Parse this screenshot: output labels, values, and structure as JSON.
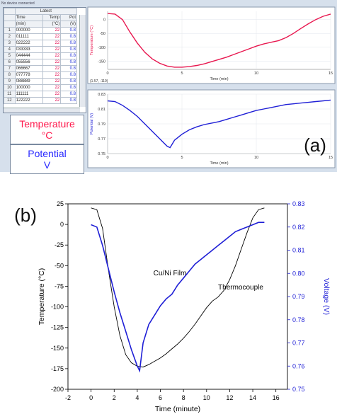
{
  "panel_a": {
    "label": "(a)",
    "status": "No device connected",
    "table": {
      "group_header": "Latest",
      "columns": [
        {
          "name": "Time",
          "unit": "(min)"
        },
        {
          "name": "Temp",
          "unit": "(°C)"
        },
        {
          "name": "Pot",
          "unit": "(V)"
        }
      ],
      "rows": [
        [
          "1",
          "000000",
          "22",
          "0.8"
        ],
        [
          "2",
          "011111",
          "22",
          "0.8"
        ],
        [
          "3",
          "022222",
          "22",
          "0.8"
        ],
        [
          "4",
          "033333",
          "22",
          "0.8"
        ],
        [
          "5",
          "044444",
          "22",
          "0.8"
        ],
        [
          "6",
          "055556",
          "22",
          "0.8"
        ],
        [
          "7",
          "066667",
          "22",
          "0.8"
        ],
        [
          "8",
          "077778",
          "22",
          "0.8"
        ],
        [
          "9",
          "088889",
          "22",
          "0.8"
        ],
        [
          "10",
          "100000",
          "22",
          "0.8"
        ],
        [
          "11",
          "111111",
          "22",
          "0.8"
        ],
        [
          "12",
          "122222",
          "22",
          "0.8"
        ]
      ]
    },
    "meters": {
      "temperature_label": "Temperature",
      "temperature_unit": "°C",
      "potential_label": "Potential",
      "potential_unit": "V"
    },
    "cursor_readout": "(1.57, -119)"
  },
  "chart_data": [
    {
      "type": "line",
      "panel": "a-top",
      "xlabel": "Time (min)",
      "ylabel": "Temperature (°C)",
      "xlim": [
        0,
        15
      ],
      "ylim": [
        -180,
        30
      ],
      "xticks": [
        0,
        5,
        10,
        15
      ],
      "yticks": [
        0,
        -50,
        -100,
        -150
      ],
      "ytick_labels": [
        "0",
        "-50",
        "-100",
        "-150"
      ],
      "color": "#e8174f",
      "series": [
        {
          "x": [
            0,
            0.5,
            1,
            1.5,
            2,
            2.5,
            3,
            3.5,
            4,
            4.5,
            5,
            5.5,
            6,
            6.5,
            7,
            7.5,
            8,
            8.5,
            9,
            9.5,
            10,
            10.5,
            11,
            11.5,
            12,
            12.5,
            13,
            13.5,
            14,
            14.5,
            15
          ],
          "y": [
            22,
            20,
            0,
            -45,
            -85,
            -118,
            -142,
            -158,
            -168,
            -172,
            -172,
            -170,
            -166,
            -160,
            -152,
            -144,
            -136,
            -126,
            -116,
            -106,
            -96,
            -88,
            -82,
            -76,
            -65,
            -50,
            -32,
            -15,
            0,
            12,
            20
          ]
        }
      ]
    },
    {
      "type": "line",
      "panel": "a-bottom",
      "xlabel": "Time (min)",
      "ylabel": "Potential (V)",
      "xlim": [
        0,
        15
      ],
      "ylim": [
        0.75,
        0.83
      ],
      "xticks": [
        0,
        5,
        10,
        15
      ],
      "yticks": [
        0.75,
        0.77,
        0.79,
        0.81,
        0.83
      ],
      "ytick_labels": [
        "0.75",
        "0.77",
        "0.79",
        "0.81",
        "0.83"
      ],
      "color": "#1f1fd6",
      "series": [
        {
          "x": [
            0,
            0.5,
            1,
            1.5,
            2,
            2.5,
            3,
            3.5,
            4,
            4.2,
            4.5,
            5,
            5.5,
            6,
            6.5,
            7,
            7.5,
            8,
            8.5,
            9,
            9.5,
            10,
            10.5,
            11,
            11.5,
            12,
            12.5,
            13,
            13.5,
            14,
            14.5,
            15
          ],
          "y": [
            0.821,
            0.82,
            0.815,
            0.808,
            0.8,
            0.79,
            0.78,
            0.77,
            0.76,
            0.758,
            0.768,
            0.776,
            0.782,
            0.786,
            0.789,
            0.791,
            0.793,
            0.796,
            0.799,
            0.802,
            0.805,
            0.808,
            0.81,
            0.812,
            0.814,
            0.816,
            0.817,
            0.818,
            0.819,
            0.82,
            0.821,
            0.822
          ]
        }
      ]
    },
    {
      "type": "line",
      "panel": "b",
      "label": "(b)",
      "xlabel": "Time (minute)",
      "ylabel": "Temperature (°C)",
      "ylabel_right": "Voltage (V)",
      "xlim": [
        -2,
        17
      ],
      "xticks": [
        -2,
        0,
        2,
        4,
        6,
        8,
        10,
        12,
        14,
        16
      ],
      "ylim": [
        -200,
        25
      ],
      "yticks": [
        25,
        0,
        -25,
        -50,
        -75,
        -100,
        -125,
        -150,
        -175,
        -200
      ],
      "ylim_right": [
        0.75,
        0.83
      ],
      "yticks_right": [
        0.75,
        0.76,
        0.77,
        0.78,
        0.79,
        0.8,
        0.81,
        0.82,
        0.83
      ],
      "ytick_labels_right": [
        "0.75",
        "0.76",
        "0.77",
        "0.78",
        "0.79",
        "0.80",
        "0.81",
        "0.82",
        "0.83"
      ],
      "series": [
        {
          "name": "Thermocouple",
          "axis": "left",
          "color": "#000000",
          "x": [
            0,
            0.5,
            1,
            1.5,
            2,
            2.5,
            3,
            3.5,
            4,
            4.5,
            5,
            5.5,
            6,
            6.5,
            7,
            7.5,
            8,
            8.5,
            9,
            9.5,
            10,
            10.5,
            11,
            11.5,
            12,
            12.5,
            13,
            13.5,
            14,
            14.5,
            15
          ],
          "y": [
            20,
            18,
            -5,
            -55,
            -100,
            -135,
            -158,
            -168,
            -172,
            -173,
            -170,
            -166,
            -162,
            -157,
            -151,
            -145,
            -138,
            -130,
            -121,
            -111,
            -101,
            -93,
            -88,
            -80,
            -67,
            -50,
            -30,
            -10,
            8,
            18,
            20
          ]
        },
        {
          "name": "Cu/Ni Film",
          "axis": "right",
          "color": "#1f1fd6",
          "x": [
            0,
            0.5,
            1,
            1.5,
            2,
            2.5,
            3,
            3.5,
            4,
            4.2,
            4.5,
            5,
            5.5,
            6,
            6.5,
            7,
            7.5,
            8,
            8.5,
            9,
            9.5,
            10,
            10.5,
            11,
            11.5,
            12,
            12.5,
            13,
            13.5,
            14,
            14.5,
            15
          ],
          "y": [
            0.821,
            0.82,
            0.812,
            0.802,
            0.792,
            0.783,
            0.775,
            0.767,
            0.76,
            0.758,
            0.77,
            0.778,
            0.782,
            0.786,
            0.789,
            0.791,
            0.795,
            0.798,
            0.801,
            0.804,
            0.806,
            0.808,
            0.81,
            0.812,
            0.814,
            0.816,
            0.818,
            0.819,
            0.82,
            0.821,
            0.822,
            0.822
          ]
        }
      ]
    }
  ]
}
